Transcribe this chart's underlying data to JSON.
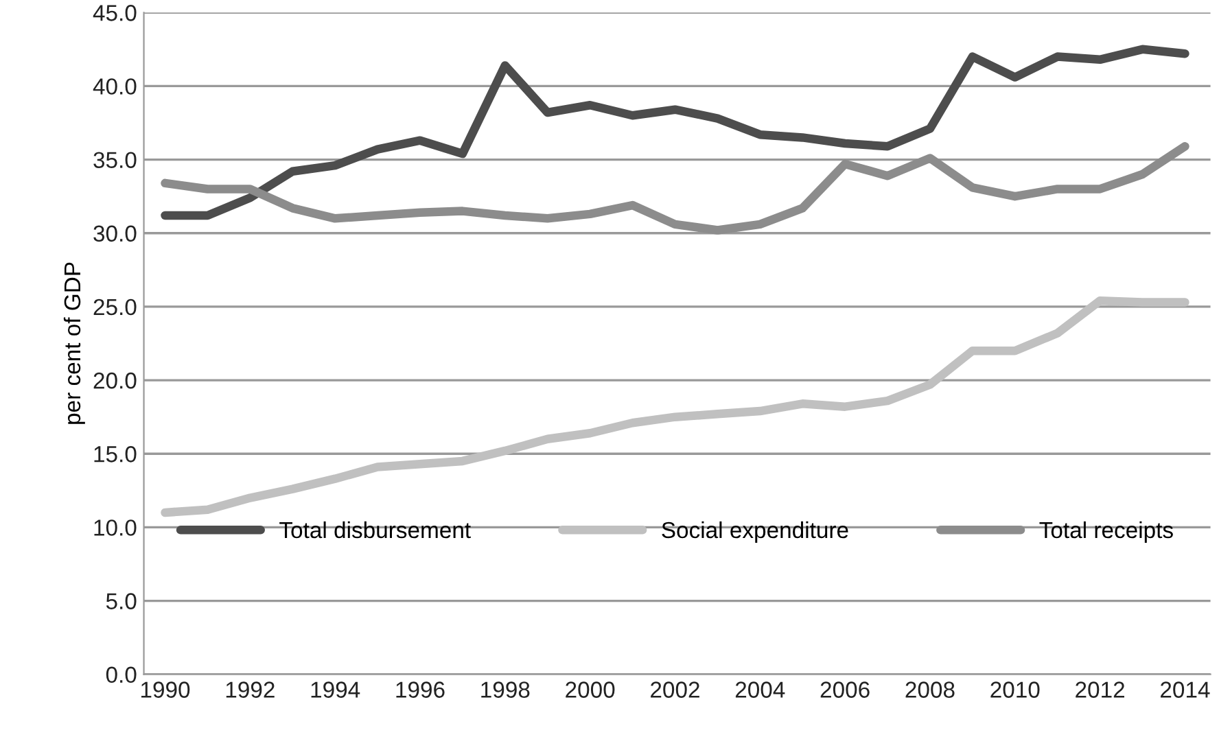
{
  "chart_data": {
    "type": "line",
    "ylabel": "per cent of GDP",
    "x": [
      1990,
      1991,
      1992,
      1993,
      1994,
      1995,
      1996,
      1997,
      1998,
      1999,
      2000,
      2001,
      2002,
      2003,
      2004,
      2005,
      2006,
      2007,
      2008,
      2009,
      2010,
      2011,
      2012,
      2013,
      2014
    ],
    "series": [
      {
        "name": "Total disbursement",
        "color": "#4d4d4d",
        "values": [
          31.2,
          31.2,
          32.4,
          34.2,
          34.6,
          35.7,
          36.3,
          35.4,
          41.4,
          38.2,
          38.7,
          38.0,
          38.4,
          37.8,
          36.7,
          36.5,
          36.1,
          35.9,
          37.1,
          42.0,
          40.6,
          42.0,
          41.8,
          42.5,
          42.2
        ]
      },
      {
        "name": "Social expenditure",
        "color": "#c0c0c0",
        "values": [
          11.0,
          11.2,
          12.0,
          12.6,
          13.3,
          14.1,
          14.3,
          14.5,
          15.2,
          16.0,
          16.4,
          17.1,
          17.5,
          17.7,
          17.9,
          18.4,
          18.2,
          18.6,
          19.7,
          22.0,
          22.0,
          23.2,
          25.4,
          25.3,
          25.3
        ]
      },
      {
        "name": "Total receipts",
        "color": "#8c8c8c",
        "values": [
          33.4,
          33.0,
          33.0,
          31.7,
          31.0,
          31.2,
          31.4,
          31.5,
          31.2,
          31.0,
          31.3,
          31.9,
          30.6,
          30.2,
          30.6,
          31.7,
          34.7,
          33.9,
          35.1,
          33.1,
          32.5,
          33.0,
          33.0,
          34.0,
          35.9
        ]
      }
    ],
    "xlim": [
      1989.5,
      2014.6
    ],
    "xticks": [
      1990,
      1992,
      1994,
      1996,
      1998,
      2000,
      2002,
      2004,
      2006,
      2008,
      2010,
      2012,
      2014
    ],
    "ylim": [
      0,
      45
    ],
    "yticks": [
      {
        "value": 0,
        "label": "0.0"
      },
      {
        "value": 5,
        "label": "5.0"
      },
      {
        "value": 10,
        "label": "10.0"
      },
      {
        "value": 15,
        "label": "15.0"
      },
      {
        "value": 20,
        "label": "20.0"
      },
      {
        "value": 25,
        "label": "25.0"
      },
      {
        "value": 30,
        "label": "30.0"
      },
      {
        "value": 35,
        "label": "35.0"
      },
      {
        "value": 40,
        "label": "40.0"
      },
      {
        "value": 45,
        "label": "45.0"
      }
    ],
    "grid": "y",
    "legend": "bottom",
    "marker": "none",
    "line_style": "solid"
  }
}
